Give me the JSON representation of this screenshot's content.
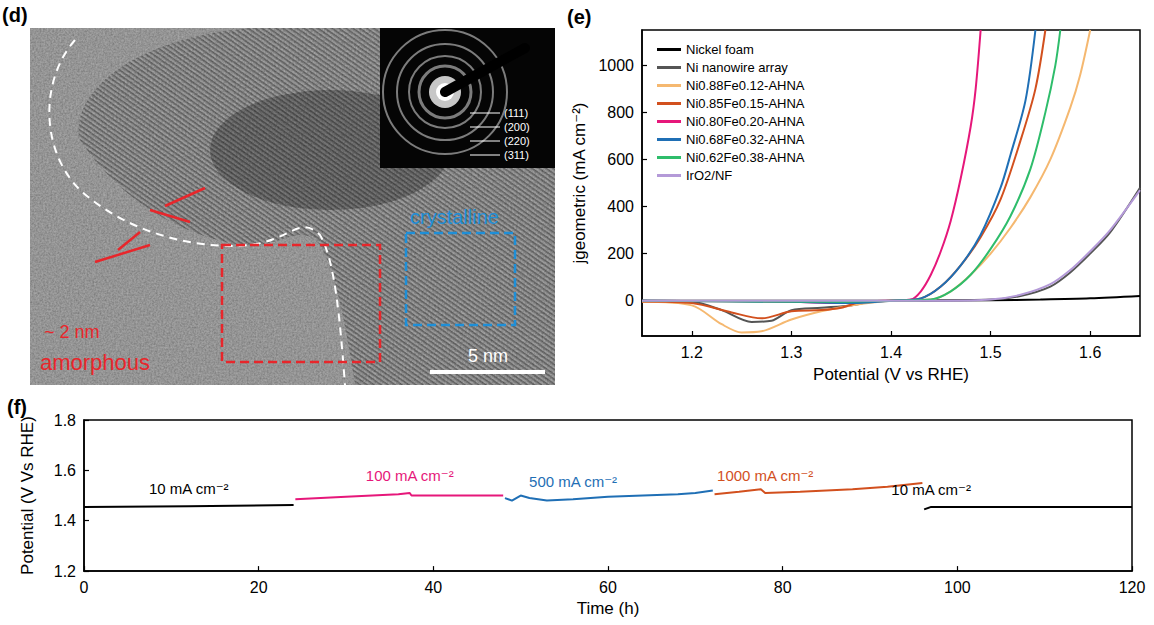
{
  "image_panel": {
    "title": "(d)",
    "regions": [
      {
        "label": "amorphous",
        "color": "#e8262b"
      },
      {
        "label": "crystalline",
        "color": "#1e8fd8"
      }
    ],
    "thickness_label": "~ 2 nm",
    "scale_bar": "5 nm",
    "diffraction_rings": [
      "(111)",
      "(200)",
      "(220)",
      "(311)"
    ]
  },
  "chart_data": [
    {
      "type": "line",
      "title": "(e)",
      "x_label": "Potential (V vs RHE)",
      "y_label": "jgeometric (mA cm⁻²)",
      "xlim": [
        1.15,
        1.65
      ],
      "xticks": [
        1.2,
        1.3,
        1.4,
        1.5,
        1.6
      ],
      "ylim": [
        -150,
        1150
      ],
      "yticks": [
        0,
        200,
        400,
        600,
        800,
        1000
      ],
      "grid": false,
      "legend": "top-left",
      "series": [
        {
          "name": "Nickel foam",
          "color": "#000000",
          "x": [
            1.15,
            1.4,
            1.5,
            1.55,
            1.6,
            1.65
          ],
          "values": [
            0,
            0,
            2,
            5,
            10,
            20
          ]
        },
        {
          "name": "Ni nanowire array",
          "color": "#555555",
          "x": [
            1.15,
            1.2,
            1.23,
            1.26,
            1.28,
            1.3,
            1.33,
            1.36,
            1.38,
            1.4,
            1.5,
            1.53,
            1.56,
            1.58,
            1.6,
            1.62,
            1.65
          ],
          "values": [
            -2,
            -5,
            -40,
            -90,
            -85,
            -40,
            -30,
            -20,
            -5,
            0,
            5,
            20,
            60,
            120,
            200,
            290,
            480
          ]
        },
        {
          "name": "Ni0.88Fe0.12-AHNA",
          "color": "#f5b870",
          "x": [
            1.15,
            1.2,
            1.23,
            1.25,
            1.27,
            1.3,
            1.33,
            1.36,
            1.4,
            1.44,
            1.46,
            1.48,
            1.5,
            1.52,
            1.54,
            1.56,
            1.58,
            1.59,
            1.6
          ],
          "values": [
            -5,
            -20,
            -100,
            -135,
            -130,
            -80,
            -45,
            -20,
            0,
            5,
            40,
            110,
            200,
            310,
            440,
            600,
            820,
            960,
            1150
          ]
        },
        {
          "name": "Ni0.85Fe0.15-AHNA",
          "color": "#d2501e",
          "x": [
            1.15,
            1.2,
            1.24,
            1.27,
            1.3,
            1.33,
            1.35,
            1.37,
            1.4,
            1.43,
            1.45,
            1.47,
            1.49,
            1.51,
            1.53,
            1.545,
            1.555
          ],
          "values": [
            -3,
            -10,
            -50,
            -75,
            -45,
            -40,
            -30,
            -5,
            0,
            10,
            60,
            150,
            270,
            430,
            680,
            900,
            1150
          ]
        },
        {
          "name": "Ni0.80Fe0.20-AHNA",
          "color": "#e6177a",
          "x": [
            1.15,
            1.3,
            1.35,
            1.38,
            1.42,
            1.43,
            1.44,
            1.45,
            1.46,
            1.47,
            1.48,
            1.485,
            1.49
          ],
          "values": [
            0,
            -5,
            -10,
            -2,
            5,
            40,
            110,
            210,
            340,
            520,
            740,
            900,
            1150
          ]
        },
        {
          "name": "Ni0.68Fe0.32-AHNA",
          "color": "#1f6fb5",
          "x": [
            1.15,
            1.3,
            1.36,
            1.4,
            1.43,
            1.45,
            1.47,
            1.49,
            1.51,
            1.52,
            1.535,
            1.545
          ],
          "values": [
            0,
            -5,
            -10,
            0,
            10,
            60,
            150,
            280,
            480,
            620,
            850,
            1150
          ]
        },
        {
          "name": "Ni0.62Fe0.38-AHNA",
          "color": "#2ebd6b",
          "x": [
            1.15,
            1.35,
            1.4,
            1.44,
            1.46,
            1.48,
            1.5,
            1.52,
            1.54,
            1.555,
            1.565,
            1.57
          ],
          "values": [
            0,
            -5,
            0,
            5,
            40,
            110,
            220,
            360,
            560,
            800,
            1000,
            1150
          ]
        },
        {
          "name": "IrO2/NF",
          "color": "#b49ad8",
          "x": [
            1.15,
            1.45,
            1.5,
            1.53,
            1.56,
            1.58,
            1.6,
            1.62,
            1.65
          ],
          "values": [
            0,
            0,
            5,
            25,
            70,
            130,
            210,
            300,
            470
          ]
        }
      ]
    },
    {
      "type": "line",
      "title": "(f)",
      "x_label": "Time (h)",
      "y_label": "Potential (V Vs RHE)",
      "xlim": [
        0,
        120
      ],
      "xticks": [
        0,
        20,
        40,
        60,
        80,
        100,
        120
      ],
      "ylim": [
        1.2,
        1.8
      ],
      "yticks": [
        1.2,
        1.4,
        1.6,
        1.8
      ],
      "grid": false,
      "series": [
        {
          "name": "10 mA cm⁻²",
          "color": "#000000",
          "x": [
            0,
            12,
            24
          ],
          "values": [
            1.455,
            1.458,
            1.462
          ]
        },
        {
          "name": "100 mA cm⁻²",
          "color": "#e6177a",
          "x": [
            24.2,
            30,
            36,
            37.3,
            37.5,
            42,
            48
          ],
          "values": [
            1.485,
            1.495,
            1.505,
            1.51,
            1.5,
            1.5,
            1.5
          ]
        },
        {
          "name": "500 mA cm⁻²",
          "color": "#1f6fb5",
          "x": [
            48.2,
            49,
            50,
            51,
            53,
            56,
            60,
            64,
            68,
            70,
            72
          ],
          "values": [
            1.49,
            1.48,
            1.5,
            1.49,
            1.48,
            1.485,
            1.495,
            1.5,
            1.505,
            1.51,
            1.52
          ]
        },
        {
          "name": "1000 mA cm⁻²",
          "color": "#d2501e",
          "x": [
            72.2,
            75,
            77.5,
            78,
            82,
            88,
            92,
            96
          ],
          "values": [
            1.505,
            1.515,
            1.525,
            1.51,
            1.515,
            1.525,
            1.535,
            1.55
          ]
        },
        {
          "name": "10 mA cm⁻²",
          "color": "#000000",
          "x": [
            96.2,
            97,
            108,
            120
          ],
          "values": [
            1.445,
            1.455,
            1.455,
            1.455
          ]
        }
      ]
    }
  ]
}
